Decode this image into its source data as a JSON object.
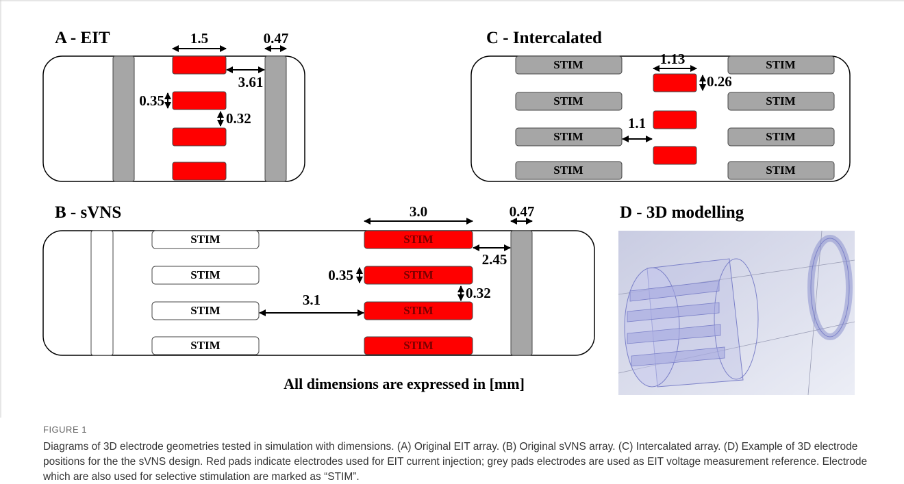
{
  "panel_a": {
    "title": "A - EIT",
    "dims": [
      "1.5",
      "0.47",
      "3.61",
      "0.35",
      "0.32"
    ]
  },
  "panel_b": {
    "title": "B - sVNS",
    "pads": [
      "STIM",
      "STIM",
      "STIM",
      "STIM",
      "STIM",
      "STIM",
      "STIM",
      "STIM"
    ],
    "dims": [
      "3.0",
      "0.47",
      "2.45",
      "0.35",
      "0.32",
      "3.1"
    ]
  },
  "panel_c": {
    "title": "C - Intercalated",
    "pads": [
      "STIM",
      "STIM",
      "STIM",
      "STIM",
      "STIM",
      "STIM",
      "STIM",
      "STIM"
    ],
    "dims": [
      "1.13",
      "0.26",
      "1.1"
    ]
  },
  "panel_d": {
    "title": "D - 3D modelling"
  },
  "note": "All dimensions are expressed in [mm]",
  "caption": {
    "label": "FIGURE 1",
    "text": "Diagrams of 3D electrode geometries tested in simulation with dimensions. (A) Original EIT array. (B) Original sVNS array. (C) Intercalated array. (D) Example of 3D electrode positions for the the sVNS design. Red pads indicate electrodes used for EIT current injection; grey pads electrodes are used as EIT voltage measurement reference. Electrode which are also used for selective stimulation are marked as “STIM”."
  }
}
